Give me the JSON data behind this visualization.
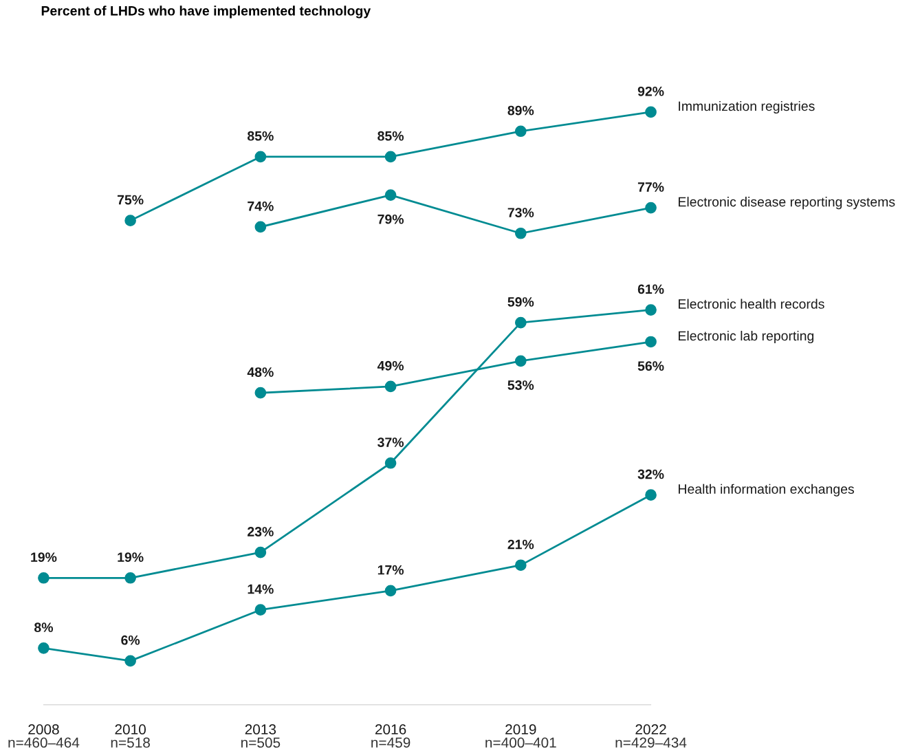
{
  "chart_data": {
    "type": "line",
    "title": "Percent of LHDs who have implemented technology",
    "xlim": [
      2008,
      2022
    ],
    "xticks": [
      2008,
      2010,
      2013,
      2016,
      2019,
      2022
    ],
    "annotations": [
      "n=460–464",
      "n=518",
      "n=505",
      "n=459",
      "n=400–401",
      "n=429–434"
    ],
    "tick_labels": "x",
    "grid": false,
    "legend": false,
    "marker": "circle",
    "line_style": "solid",
    "series": [
      {
        "name": "Immunization registries",
        "color": "#008b92",
        "x": [
          2010,
          2013,
          2016,
          2019,
          2022
        ],
        "values": [
          75,
          85,
          85,
          89,
          92
        ],
        "value_labels": [
          "75%",
          "85%",
          "85%",
          "89%",
          "92%"
        ]
      },
      {
        "name": "Electronic disease reporting systems",
        "color": "#008b92",
        "x": [
          2013,
          2016,
          2019,
          2022
        ],
        "values": [
          74,
          79,
          73,
          77
        ],
        "value_labels": [
          "74%",
          "79%",
          "73%",
          "77%"
        ]
      },
      {
        "name": "Electronic health records",
        "color": "#008b92",
        "x": [
          2008,
          2010,
          2013,
          2016,
          2019,
          2022
        ],
        "values": [
          19,
          19,
          23,
          37,
          59,
          61
        ],
        "value_labels": [
          "19%",
          "19%",
          "23%",
          "37%",
          "59%",
          "61%"
        ]
      },
      {
        "name": "Electronic lab reporting",
        "color": "#008b92",
        "x": [
          2013,
          2016,
          2019,
          2022
        ],
        "values": [
          48,
          49,
          53,
          56
        ],
        "value_labels": [
          "48%",
          "49%",
          "53%",
          "56%"
        ]
      },
      {
        "name": "Health information exchanges",
        "color": "#008b92",
        "x": [
          2008,
          2010,
          2013,
          2016,
          2019,
          2022
        ],
        "values": [
          8,
          6,
          14,
          17,
          21,
          32
        ],
        "value_labels": [
          "8%",
          "6%",
          "14%",
          "17%",
          "21%",
          "32%"
        ]
      }
    ]
  }
}
